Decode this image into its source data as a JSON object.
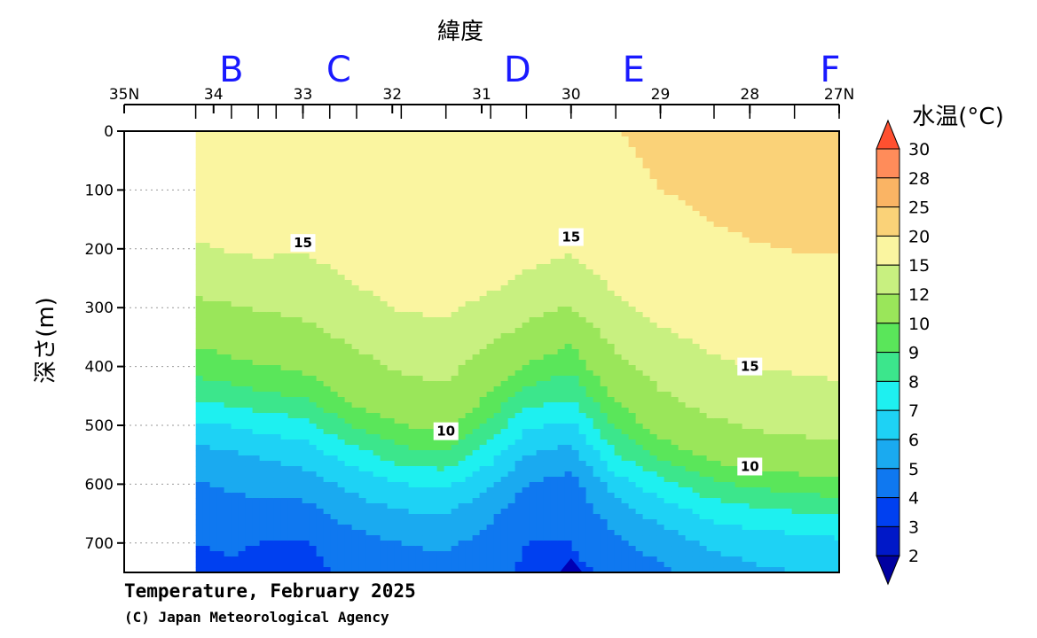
{
  "chart_data": {
    "type": "contour",
    "title": "Temperature, February 2025",
    "credit": "(C) Japan Meteorological Agency",
    "xlabel": "緯度",
    "ylabel": "深さ(m)",
    "colorbar_title": "水温(°C)",
    "x_ticks": [
      "35N",
      "34",
      "33",
      "32",
      "31",
      "30",
      "29",
      "28",
      "27N"
    ],
    "x_tick_values": [
      35,
      34,
      33,
      32,
      31,
      30,
      29,
      28,
      27
    ],
    "xlim": [
      35,
      27
    ],
    "y_ticks": [
      "0",
      "100",
      "200",
      "300",
      "400",
      "500",
      "600",
      "700"
    ],
    "y_tick_values": [
      0,
      100,
      200,
      300,
      400,
      500,
      600,
      700
    ],
    "ylim": [
      0,
      750
    ],
    "stations": [
      {
        "label": "B",
        "lat": 33.8
      },
      {
        "label": "C",
        "lat": 32.6
      },
      {
        "label": "D",
        "lat": 30.6
      },
      {
        "label": "E",
        "lat": 29.3
      },
      {
        "label": "F",
        "lat": 27.1
      }
    ],
    "station_tick_lats": [
      34.2,
      33.8,
      33.5,
      33.3,
      33.0,
      32.7,
      32.4,
      31.9,
      31.4,
      30.9,
      30.5,
      30.0,
      29.5,
      29.0,
      28.4,
      28.0,
      27.5,
      27.0
    ],
    "colorbar_levels": [
      "2",
      "3",
      "4",
      "5",
      "6",
      "7",
      "8",
      "9",
      "10",
      "12",
      "15",
      "20",
      "25",
      "28",
      "30"
    ],
    "colorbar_colors": [
      "#0000a0",
      "#0018c8",
      "#0040f0",
      "#0f78f0",
      "#1aaaf0",
      "#1ed2f5",
      "#1ef0f0",
      "#3ce68c",
      "#5ae65a",
      "#9ae65a",
      "#c8f080",
      "#faf5a0",
      "#fad278",
      "#fab464",
      "#ff8c5a",
      "#ff5030"
    ],
    "no_data_xlim": [
      35,
      34.2
    ],
    "depth_grid": [
      0,
      100,
      150,
      200,
      250,
      300,
      350,
      400,
      450,
      500,
      550,
      600,
      650,
      700,
      750
    ],
    "temperature_profiles": [
      {
        "lat": 34.2,
        "temps": [
          18.6,
          17.9,
          16.5,
          14.6,
          12.8,
          11.5,
          10.2,
          9.5,
          8.2,
          6.8,
          5.6,
          4.9,
          4.4,
          4.0,
          3.8
        ]
      },
      {
        "lat": 33.8,
        "temps": [
          18.8,
          18.2,
          16.8,
          15.2,
          13.3,
          11.8,
          10.6,
          9.7,
          8.5,
          7.0,
          5.9,
          5.2,
          4.6,
          4.1,
          3.9
        ]
      },
      {
        "lat": 33.5,
        "temps": [
          18.9,
          18.4,
          17.4,
          15.6,
          13.7,
          12.1,
          10.8,
          9.9,
          8.8,
          7.3,
          6.1,
          5.3,
          4.6,
          4.0,
          3.8
        ]
      },
      {
        "lat": 33.0,
        "temps": [
          19.0,
          18.6,
          17.2,
          15.1,
          13.6,
          12.5,
          11.2,
          10.2,
          9.1,
          7.6,
          6.4,
          5.5,
          4.6,
          3.9,
          3.7
        ]
      },
      {
        "lat": 32.4,
        "temps": [
          19.3,
          18.9,
          18.3,
          17.0,
          15.3,
          13.9,
          12.5,
          11.3,
          10.4,
          9.2,
          7.6,
          6.3,
          5.5,
          4.6,
          4.3
        ]
      },
      {
        "lat": 31.9,
        "temps": [
          19.5,
          19.2,
          18.8,
          17.9,
          16.6,
          15.2,
          13.7,
          12.3,
          11.2,
          10.0,
          8.6,
          7.0,
          5.9,
          5.0,
          4.6
        ]
      },
      {
        "lat": 31.4,
        "temps": [
          19.6,
          19.3,
          19.0,
          18.2,
          17.0,
          15.5,
          14.0,
          12.6,
          11.4,
          10.2,
          8.9,
          7.1,
          6.0,
          5.2,
          4.7
        ]
      },
      {
        "lat": 30.9,
        "temps": [
          19.7,
          19.4,
          18.8,
          17.5,
          15.9,
          14.1,
          12.4,
          11.0,
          9.9,
          8.6,
          7.4,
          6.1,
          5.2,
          4.6,
          4.3
        ]
      },
      {
        "lat": 30.5,
        "temps": [
          19.8,
          19.2,
          17.8,
          16.2,
          14.5,
          12.7,
          11.1,
          9.8,
          8.6,
          7.2,
          6.0,
          5.0,
          4.4,
          4.0,
          3.8
        ]
      },
      {
        "lat": 30.0,
        "temps": [
          19.7,
          18.3,
          16.6,
          15.2,
          13.7,
          11.9,
          10.3,
          9.2,
          8.2,
          6.8,
          5.6,
          4.6,
          4.2,
          4.0,
          3.7
        ]
      },
      {
        "lat": 29.5,
        "temps": [
          19.9,
          19.4,
          18.7,
          17.3,
          15.8,
          14.2,
          12.6,
          11.3,
          10.2,
          9.1,
          7.9,
          6.5,
          5.5,
          4.8,
          4.3
        ]
      },
      {
        "lat": 29.0,
        "temps": [
          20.6,
          20.0,
          19.2,
          18.3,
          17.1,
          15.9,
          14.4,
          13.0,
          11.7,
          10.5,
          9.3,
          7.6,
          6.4,
          5.4,
          4.8
        ]
      },
      {
        "lat": 28.4,
        "temps": [
          21.0,
          20.6,
          20.1,
          19.3,
          18.2,
          17.0,
          15.8,
          14.5,
          13.1,
          11.6,
          10.4,
          8.8,
          7.3,
          6.2,
          5.5
        ]
      },
      {
        "lat": 28.0,
        "temps": [
          21.1,
          20.9,
          20.5,
          19.8,
          18.7,
          17.5,
          16.3,
          15.0,
          13.7,
          12.2,
          10.6,
          9.2,
          7.6,
          6.4,
          5.8
        ]
      },
      {
        "lat": 27.5,
        "temps": [
          21.2,
          21.0,
          20.7,
          20.1,
          19.0,
          17.8,
          16.6,
          15.3,
          14.0,
          12.6,
          10.9,
          9.5,
          7.9,
          6.6,
          6.0
        ]
      },
      {
        "lat": 27.0,
        "temps": [
          21.2,
          21.1,
          20.8,
          20.2,
          19.2,
          18.0,
          16.8,
          15.6,
          14.3,
          12.9,
          11.2,
          9.7,
          8.1,
          6.8,
          6.1
        ]
      }
    ],
    "contour_labels": [
      {
        "text": "15",
        "lat": 33.0,
        "depth": 190
      },
      {
        "text": "15",
        "lat": 30.0,
        "depth": 180
      },
      {
        "text": "15",
        "lat": 28.0,
        "depth": 400
      },
      {
        "text": "10",
        "lat": 31.4,
        "depth": 510
      },
      {
        "text": "10",
        "lat": 28.0,
        "depth": 570
      }
    ]
  }
}
